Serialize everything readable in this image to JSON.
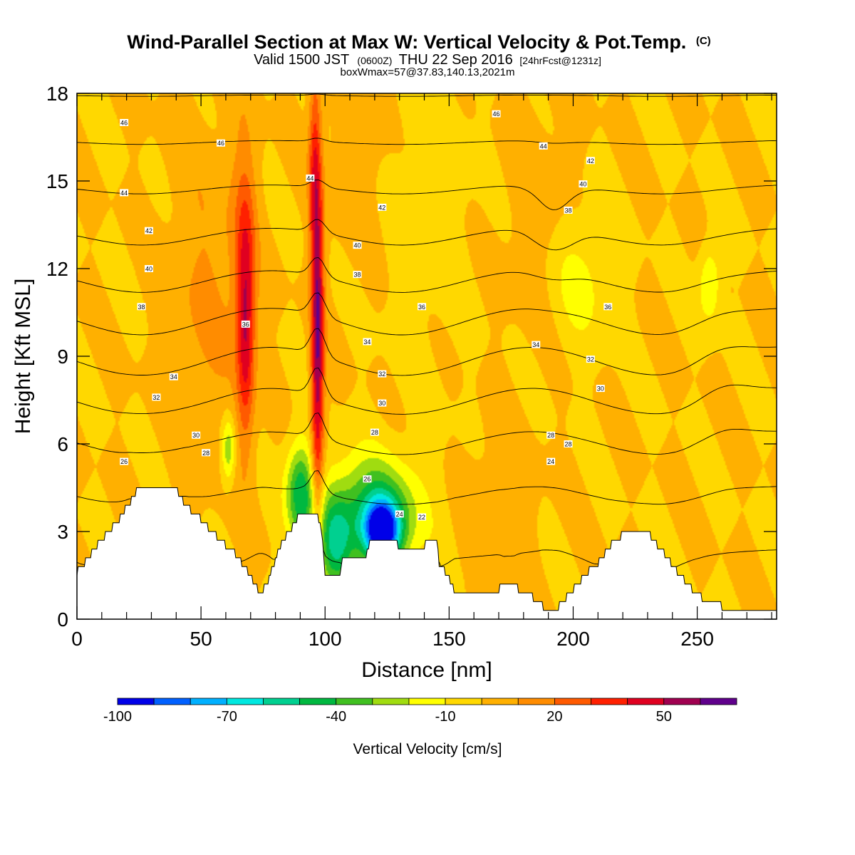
{
  "chart_data": {
    "type": "heatmap",
    "title": "Wind-Parallel Section at Max W: Vertical Velocity & Pot.Temp.",
    "title_mark": "(C)",
    "subtitle_parts": [
      "Valid 1500 JST",
      "(0600Z)",
      "THU 22 Sep 2016",
      "[24hrFcst@1231z]"
    ],
    "subtitle2": "boxWmax=57@37.83,140.13,2021m",
    "xlabel": "Distance [nm]",
    "ylabel": "Height [Kft MSL]",
    "xlim": [
      0,
      282
    ],
    "ylim": [
      0,
      18
    ],
    "x_ticks": [
      0,
      50,
      100,
      150,
      200,
      250
    ],
    "y_ticks": [
      0,
      3,
      6,
      9,
      12,
      15,
      18
    ],
    "colorbar": {
      "label": "Vertical Velocity [cm/s]",
      "min": -100,
      "step": 10,
      "tick_labels": [
        "-100",
        "-70",
        "-40",
        "-10",
        "20",
        "50"
      ],
      "colors": [
        "#0000e8",
        "#0060ff",
        "#00b0ff",
        "#00e8e0",
        "#00d090",
        "#00b840",
        "#40c020",
        "#a0dc10",
        "#ffff00",
        "#ffd800",
        "#ffb000",
        "#ff8c00",
        "#ff5a00",
        "#ff2000",
        "#e00020",
        "#a00050",
        "#60008c"
      ]
    },
    "terrain_kft": [
      [
        0,
        1.6
      ],
      [
        3,
        1.9
      ],
      [
        6,
        2.3
      ],
      [
        10,
        2.7
      ],
      [
        13,
        3.0
      ],
      [
        16,
        3.3
      ],
      [
        19,
        3.7
      ],
      [
        22,
        4.1
      ],
      [
        25,
        4.5
      ],
      [
        40,
        4.5
      ],
      [
        42,
        4.1
      ],
      [
        45,
        3.8
      ],
      [
        48,
        3.6
      ],
      [
        51,
        3.3
      ],
      [
        54,
        3.0
      ],
      [
        57,
        2.8
      ],
      [
        60,
        2.5
      ],
      [
        63,
        2.3
      ],
      [
        66,
        2.0
      ],
      [
        69,
        1.6
      ],
      [
        71,
        1.3
      ],
      [
        73,
        1.0
      ],
      [
        75,
        1.0
      ],
      [
        77,
        1.3
      ],
      [
        79,
        1.8
      ],
      [
        81,
        2.3
      ],
      [
        84,
        2.8
      ],
      [
        87,
        3.2
      ],
      [
        90,
        3.6
      ],
      [
        97,
        3.6
      ],
      [
        99,
        2.8
      ],
      [
        100,
        1.6
      ],
      [
        106,
        1.6
      ],
      [
        107,
        2.0
      ],
      [
        116,
        2.0
      ],
      [
        118,
        2.6
      ],
      [
        129,
        2.6
      ],
      [
        130,
        2.3
      ],
      [
        140,
        2.3
      ],
      [
        141,
        2.8
      ],
      [
        145,
        2.8
      ],
      [
        146,
        1.9
      ],
      [
        150,
        1.4
      ],
      [
        152,
        1.0
      ],
      [
        170,
        1.0
      ],
      [
        172,
        1.3
      ],
      [
        177,
        1.3
      ],
      [
        178,
        1.0
      ],
      [
        183,
        0.8
      ],
      [
        186,
        0.6
      ],
      [
        188,
        0.4
      ],
      [
        194,
        0.4
      ],
      [
        197,
        0.7
      ],
      [
        200,
        1.0
      ],
      [
        203,
        1.3
      ],
      [
        207,
        1.7
      ],
      [
        211,
        2.0
      ],
      [
        214,
        2.4
      ],
      [
        217,
        2.7
      ],
      [
        220,
        2.9
      ],
      [
        231,
        2.9
      ],
      [
        233,
        2.6
      ],
      [
        236,
        2.3
      ],
      [
        239,
        2.0
      ],
      [
        242,
        1.6
      ],
      [
        245,
        1.3
      ],
      [
        248,
        1.0
      ],
      [
        251,
        0.8
      ],
      [
        254,
        0.6
      ],
      [
        257,
        0.5
      ],
      [
        262,
        0.4
      ],
      [
        282,
        0.4
      ]
    ],
    "w_features": [
      {
        "x": 97,
        "z": 9.5,
        "sx": 1.8,
        "sz": 4.5,
        "amp": 60
      },
      {
        "x": 95.5,
        "z": 15.5,
        "sx": 1.6,
        "sz": 2.5,
        "amp": 24
      },
      {
        "x": 68,
        "z": 10,
        "sx": 2.5,
        "sz": 2.8,
        "amp": 42
      },
      {
        "x": 67,
        "z": 13,
        "sx": 4,
        "sz": 3,
        "amp": 14
      },
      {
        "x": 52,
        "z": 11,
        "sx": 11,
        "sz": 4,
        "amp": 11
      },
      {
        "x": 115,
        "z": 17,
        "sx": 10,
        "sz": 3,
        "amp": 7
      },
      {
        "x": 170,
        "z": 3.5,
        "sx": 9,
        "sz": 1.8,
        "amp": 10
      },
      {
        "x": 186,
        "z": 14,
        "sx": 10,
        "sz": 3,
        "amp": 6
      },
      {
        "x": 123,
        "z": 3.0,
        "sx": 5,
        "sz": 0.7,
        "amp": -85
      },
      {
        "x": 120,
        "z": 3.6,
        "sx": 12,
        "sz": 1.3,
        "amp": -48
      },
      {
        "x": 90,
        "z": 4.3,
        "sx": 4,
        "sz": 1.2,
        "amp": -48
      },
      {
        "x": 104,
        "z": 2.6,
        "sx": 5,
        "sz": 1.2,
        "amp": -40
      },
      {
        "x": 61,
        "z": 5.8,
        "sx": 2,
        "sz": 0.8,
        "amp": -30
      },
      {
        "x": 203,
        "z": 11.6,
        "sx": 9,
        "sz": 1.6,
        "amp": -14
      },
      {
        "x": 255,
        "z": 11.5,
        "sx": 3,
        "sz": 0.9,
        "amp": -22
      },
      {
        "x": 140,
        "z": 15,
        "sx": 12,
        "sz": 4,
        "amp": -7
      }
    ],
    "theta_contours_c": [
      22,
      24,
      26,
      28,
      30,
      32,
      34,
      36,
      38,
      40,
      42,
      44,
      46
    ],
    "theta_labels": [
      {
        "text": "46",
        "x": 19,
        "z": 17.0
      },
      {
        "text": "46",
        "x": 58,
        "z": 16.3
      },
      {
        "text": "46",
        "x": 169,
        "z": 17.3
      },
      {
        "text": "44",
        "x": 19,
        "z": 14.6
      },
      {
        "text": "44",
        "x": 94,
        "z": 15.1
      },
      {
        "text": "44",
        "x": 188,
        "z": 16.2
      },
      {
        "text": "42",
        "x": 29,
        "z": 13.3
      },
      {
        "text": "42",
        "x": 123,
        "z": 14.1
      },
      {
        "text": "42",
        "x": 207,
        "z": 15.7
      },
      {
        "text": "40",
        "x": 29,
        "z": 12.0
      },
      {
        "text": "40",
        "x": 113,
        "z": 12.8
      },
      {
        "text": "40",
        "x": 204,
        "z": 14.9
      },
      {
        "text": "38",
        "x": 26,
        "z": 10.7
      },
      {
        "text": "38",
        "x": 113,
        "z": 11.8
      },
      {
        "text": "38",
        "x": 198,
        "z": 14.0
      },
      {
        "text": "36",
        "x": 68,
        "z": 10.1
      },
      {
        "text": "36",
        "x": 139,
        "z": 10.7
      },
      {
        "text": "36",
        "x": 214,
        "z": 10.7
      },
      {
        "text": "34",
        "x": 39,
        "z": 8.3
      },
      {
        "text": "34",
        "x": 117,
        "z": 9.5
      },
      {
        "text": "34",
        "x": 185,
        "z": 9.4
      },
      {
        "text": "32",
        "x": 32,
        "z": 7.6
      },
      {
        "text": "32",
        "x": 123,
        "z": 8.4
      },
      {
        "text": "32",
        "x": 207,
        "z": 8.9
      },
      {
        "text": "30",
        "x": 48,
        "z": 6.3
      },
      {
        "text": "30",
        "x": 123,
        "z": 7.4
      },
      {
        "text": "30",
        "x": 211,
        "z": 7.9
      },
      {
        "text": "28",
        "x": 52,
        "z": 5.7
      },
      {
        "text": "28",
        "x": 120,
        "z": 6.4
      },
      {
        "text": "28",
        "x": 191,
        "z": 6.3
      },
      {
        "text": "28",
        "x": 198,
        "z": 6.0
      },
      {
        "text": "26",
        "x": 19,
        "z": 5.4
      },
      {
        "text": "26",
        "x": 117,
        "z": 4.8
      },
      {
        "text": "24",
        "x": 130,
        "z": 3.6
      },
      {
        "text": "24",
        "x": 191,
        "z": 5.4
      },
      {
        "text": "22",
        "x": 139,
        "z": 3.5
      }
    ]
  }
}
